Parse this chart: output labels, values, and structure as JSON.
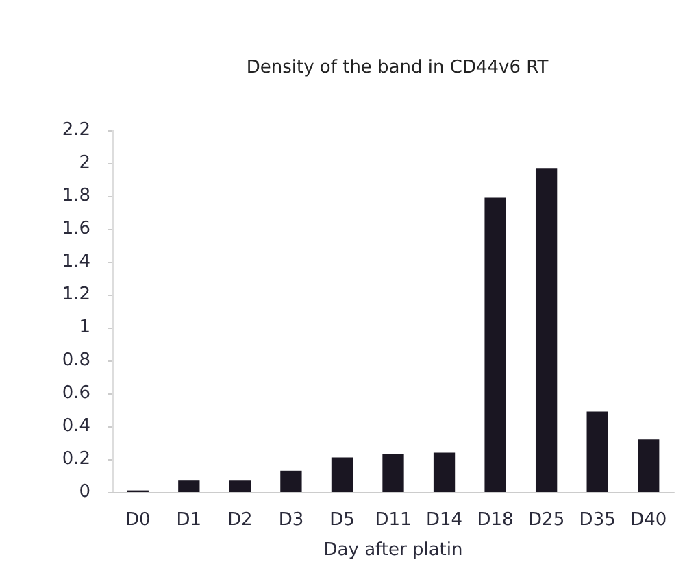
{
  "chart_data": {
    "type": "bar",
    "title": "Density of the band in CD44v6 RT",
    "xlabel": "Day after platin",
    "categories": [
      "D0",
      "D1",
      "D2",
      "D3",
      "D5",
      "D11",
      "D14",
      "D18",
      "D25",
      "D35",
      "D40"
    ],
    "values": [
      0.01,
      0.07,
      0.07,
      0.13,
      0.21,
      0.23,
      0.24,
      1.79,
      1.97,
      0.49,
      0.32
    ],
    "color": "#1a1622",
    "ylim": [
      0,
      2.2
    ],
    "yticks": [
      0,
      0.2,
      0.4,
      0.6,
      0.8,
      1,
      1.2,
      1.4,
      1.6,
      1.8,
      2,
      2.2
    ],
    "grid": false
  }
}
